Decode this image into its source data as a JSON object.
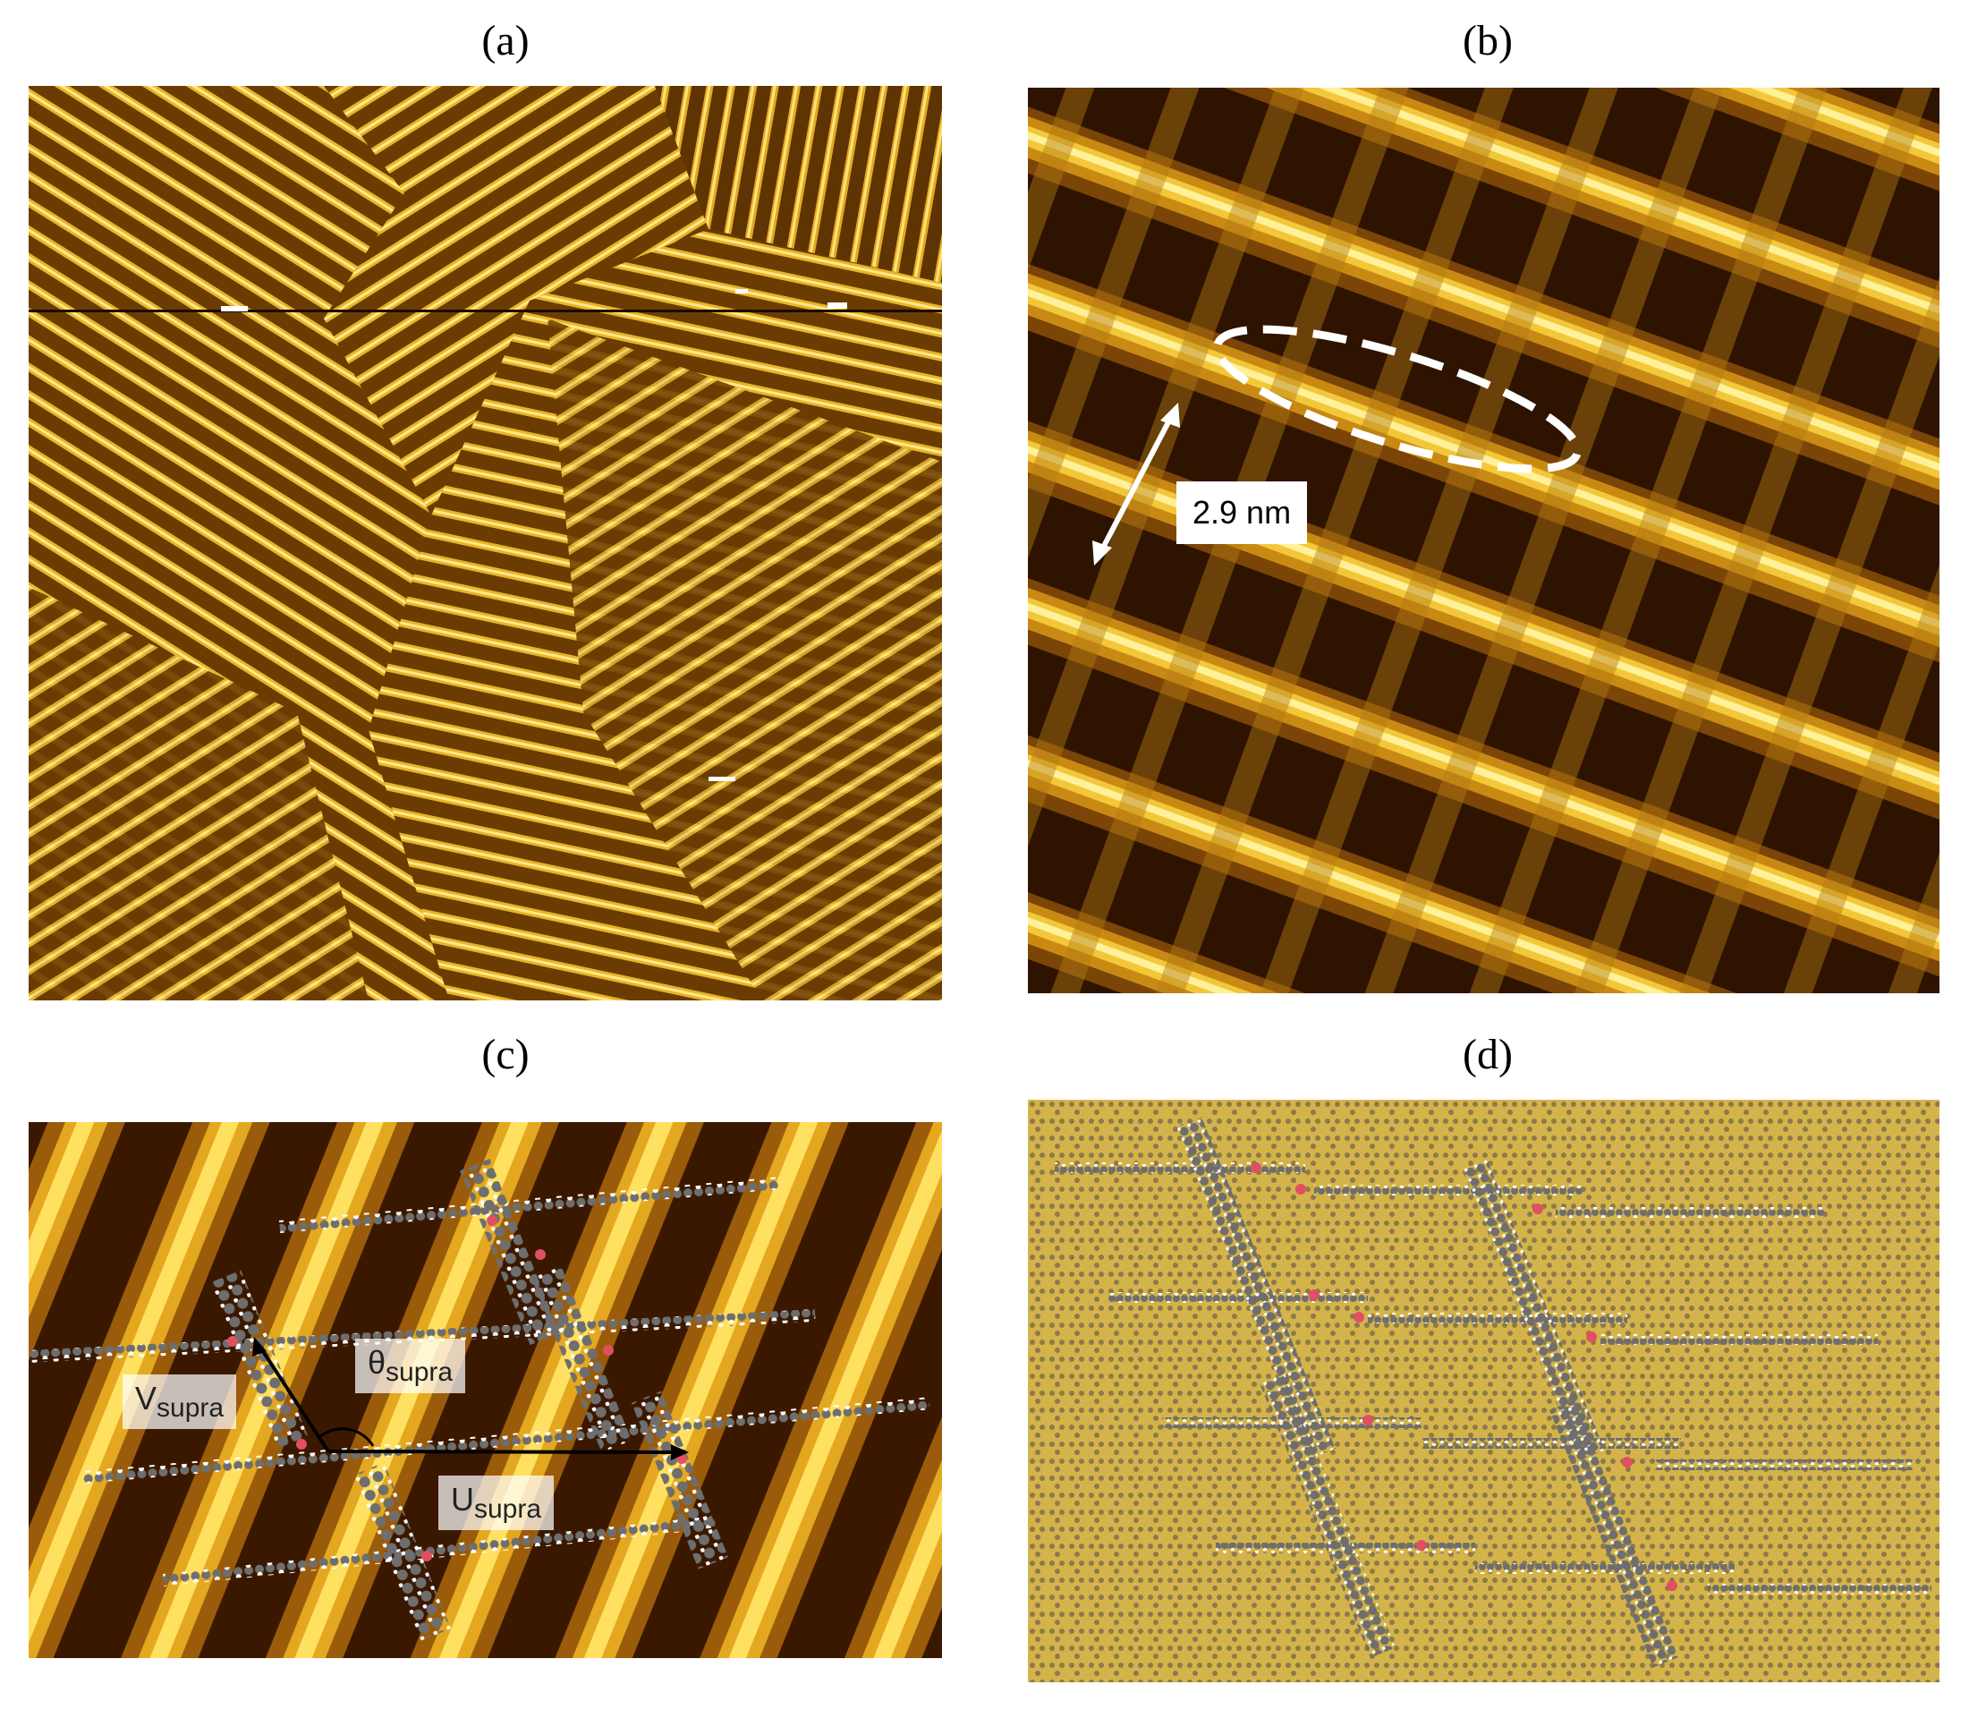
{
  "figure": {
    "panels": [
      {
        "label": "(a)"
      },
      {
        "label": "(b)"
      },
      {
        "label": "(c)"
      },
      {
        "label": "(d)"
      }
    ],
    "panel_b": {
      "scale_text": "2.9 nm"
    },
    "panel_c": {
      "v_main": "V",
      "v_sub": "supra",
      "theta_main": "θ",
      "theta_sub": "supra",
      "u_main": "U",
      "u_sub": "supra"
    },
    "colors": {
      "stm_dark": "#2a1200",
      "stm_mid": "#a86a08",
      "stm_bright": "#f5d23a",
      "graphite_bg": "#d4b44a",
      "carbon": "#6e6e6e",
      "oxygen": "#e05060",
      "hydrogen": "#ffffff"
    }
  }
}
